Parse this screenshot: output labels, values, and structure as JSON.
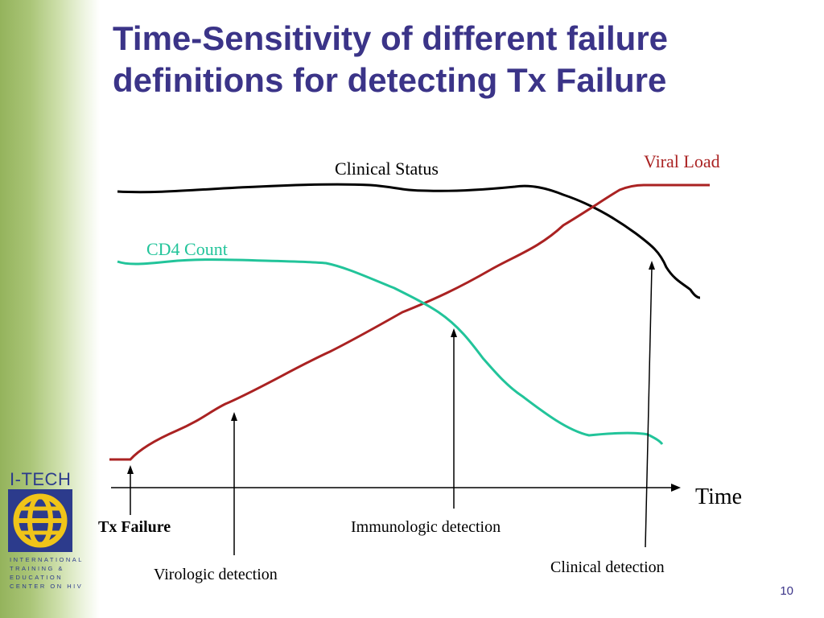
{
  "slide": {
    "title": "Time-Sensitivity of different failure\ndefinitions for detecting Tx Failure",
    "page_number": "10"
  },
  "logo": {
    "title": "I-TECH",
    "text": "INTERNATIONAL\nTRAINING &\nEDUCATION\nCENTER ON HIV"
  },
  "diagram": {
    "axis_label": "Time",
    "curves": {
      "clinical_status": "Clinical Status",
      "viral_load": "Viral Load",
      "cd4_count": "CD4 Count"
    },
    "markers": {
      "tx_failure": "Tx Failure",
      "virologic": "Virologic detection",
      "immunologic": "Immunologic detection",
      "clinical": "Clinical detection"
    },
    "colors": {
      "clinical_status": "#000000",
      "viral_load": "#aa2222",
      "cd4_count": "#22c49a",
      "title": "#3b3488"
    }
  }
}
